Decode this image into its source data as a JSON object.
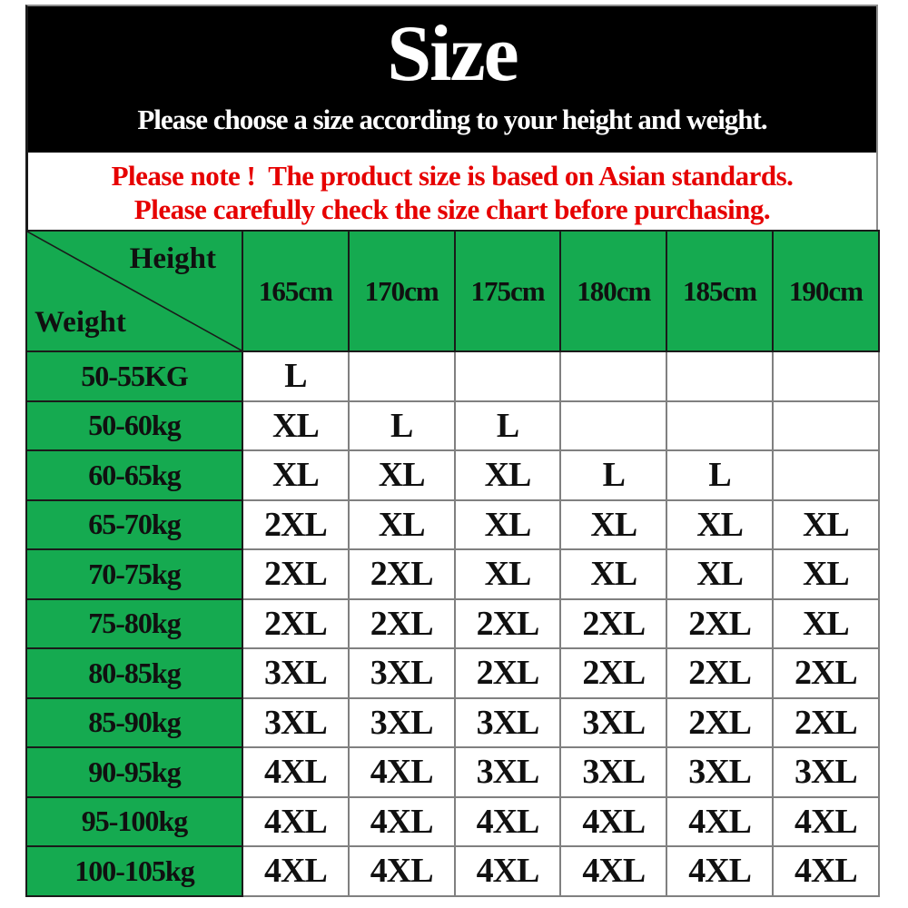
{
  "header": {
    "title": "Size",
    "subtitle": "Please choose a size according to your height and weight."
  },
  "note": {
    "line1": "Please note !  The product size is based on Asian standards.",
    "line2": "Please carefully check the size chart before purchasing."
  },
  "chart_data": {
    "type": "table",
    "title": "Size",
    "corner": {
      "top_label": "Height",
      "bottom_label": "Weight"
    },
    "columns": [
      "165cm",
      "170cm",
      "175cm",
      "180cm",
      "185cm",
      "190cm"
    ],
    "rows": [
      {
        "weight": "50-55KG",
        "sizes": [
          "L",
          "",
          "",
          "",
          "",
          ""
        ]
      },
      {
        "weight": "50-60kg",
        "sizes": [
          "XL",
          "L",
          "L",
          "",
          "",
          ""
        ]
      },
      {
        "weight": "60-65kg",
        "sizes": [
          "XL",
          "XL",
          "XL",
          "L",
          "L",
          ""
        ]
      },
      {
        "weight": "65-70kg",
        "sizes": [
          "2XL",
          "XL",
          "XL",
          "XL",
          "XL",
          "XL"
        ]
      },
      {
        "weight": "70-75kg",
        "sizes": [
          "2XL",
          "2XL",
          "XL",
          "XL",
          "XL",
          "XL"
        ]
      },
      {
        "weight": "75-80kg",
        "sizes": [
          "2XL",
          "2XL",
          "2XL",
          "2XL",
          "2XL",
          "XL"
        ]
      },
      {
        "weight": "80-85kg",
        "sizes": [
          "3XL",
          "3XL",
          "2XL",
          "2XL",
          "2XL",
          "2XL"
        ]
      },
      {
        "weight": "85-90kg",
        "sizes": [
          "3XL",
          "3XL",
          "3XL",
          "3XL",
          "2XL",
          "2XL"
        ]
      },
      {
        "weight": "90-95kg",
        "sizes": [
          "4XL",
          "4XL",
          "3XL",
          "3XL",
          "3XL",
          "3XL"
        ]
      },
      {
        "weight": "95-100kg",
        "sizes": [
          "4XL",
          "4XL",
          "4XL",
          "4XL",
          "4XL",
          "4XL"
        ]
      },
      {
        "weight": "100-105kg",
        "sizes": [
          "4XL",
          "4XL",
          "4XL",
          "4XL",
          "4XL",
          "4XL"
        ]
      }
    ]
  },
  "colors": {
    "green": "#15aa50",
    "red": "#e60000",
    "banner_black": "#000000",
    "grid_gray": "#808080",
    "grid_dark": "#1a1a1a"
  }
}
